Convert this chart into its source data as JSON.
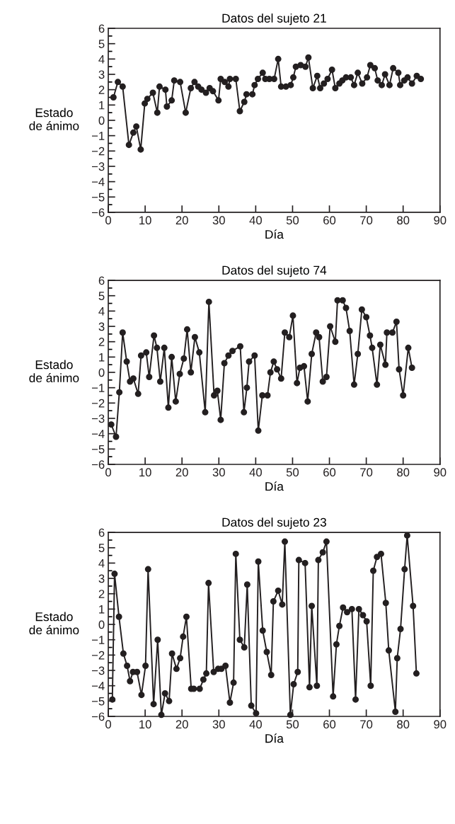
{
  "chart_data": [
    {
      "type": "line",
      "title": "Datos del sujeto 21",
      "xlabel": "Día",
      "ylabel": "Estado\nde ánimo",
      "marker": "circle",
      "line_style": "solid",
      "xlim": [
        0,
        90
      ],
      "xticks": [
        0,
        10,
        20,
        30,
        40,
        50,
        60,
        70,
        80,
        90
      ],
      "ylim": [
        -6,
        6
      ],
      "yticks": [
        {
          "value": -6,
          "label": "−6"
        },
        {
          "value": -5.5,
          "label": null
        },
        {
          "value": -5,
          "label": "−5"
        },
        {
          "value": -4.5,
          "label": null
        },
        {
          "value": -4,
          "label": "−4"
        },
        {
          "value": -3.5,
          "label": null
        },
        {
          "value": -3,
          "label": "−3"
        },
        {
          "value": -2.5,
          "label": null
        },
        {
          "value": -2,
          "label": "−2"
        },
        {
          "value": -1.5,
          "label": null
        },
        {
          "value": -1,
          "label": "−1"
        },
        {
          "value": -0.5,
          "label": null
        },
        0,
        {
          "value": 0.5,
          "label": null
        },
        1,
        {
          "value": 1.5,
          "label": null
        },
        2,
        {
          "value": 2.5,
          "label": null
        },
        3,
        {
          "value": 3.5,
          "label": null
        },
        4,
        {
          "value": 4.5,
          "label": null
        },
        5,
        {
          "value": 5.5,
          "label": null
        },
        6
      ],
      "series": [
        {
          "color": "#231f20",
          "x": [
            1.4,
            2.6,
            3.9,
            5.6,
            6.8,
            7.6,
            8.8,
            9.9,
            10.6,
            12.1,
            13.3,
            13.9,
            15.5,
            15.9,
            17.2,
            17.9,
            19.5,
            21.0,
            22.4,
            23.4,
            24.4,
            25.3,
            26.5,
            27.5,
            28.4,
            29.9,
            30.5,
            31.6,
            32.6,
            33.0,
            34.6,
            35.7,
            36.9,
            37.5,
            39.1,
            39.7,
            40.6,
            41.9,
            42.6,
            43.7,
            45.0,
            46.1,
            46.9,
            48.2,
            49.5,
            50.2,
            50.9,
            52.2,
            53.5,
            54.3,
            55.5,
            56.7,
            57.5,
            58.5,
            59.5,
            60.7,
            61.6,
            62.7,
            63.5,
            64.5,
            65.8,
            66.7,
            67.7,
            68.9,
            70.2,
            71.1,
            72.3,
            73.1,
            74.2,
            75.1,
            76.3,
            77.3,
            78.7,
            79.2,
            80.3,
            81.2,
            82.4,
            83.7,
            84.8
          ],
          "values": [
            1.5,
            2.5,
            2.2,
            -1.6,
            -0.8,
            -0.4,
            -1.9,
            1.1,
            1.4,
            1.8,
            0.5,
            2.2,
            2.0,
            0.9,
            1.3,
            2.6,
            2.5,
            0.5,
            2.1,
            2.5,
            2.2,
            2.0,
            1.8,
            2.1,
            1.9,
            1.3,
            2.7,
            2.5,
            2.2,
            2.7,
            2.7,
            0.6,
            1.2,
            1.7,
            1.7,
            2.3,
            2.7,
            3.1,
            2.7,
            2.7,
            2.7,
            4.0,
            2.2,
            2.2,
            2.3,
            2.8,
            3.5,
            3.6,
            3.5,
            4.1,
            2.1,
            2.9,
            2.1,
            2.4,
            2.7,
            3.3,
            2.1,
            2.4,
            2.6,
            2.8,
            2.8,
            2.3,
            3.1,
            2.4,
            2.8,
            3.6,
            3.4,
            2.6,
            2.3,
            3.0,
            2.3,
            3.4,
            3.1,
            2.3,
            2.6,
            2.8,
            2.4,
            2.9,
            2.7
          ]
        }
      ]
    },
    {
      "type": "line",
      "title": "Datos del sujeto 74",
      "xlabel": "Día",
      "ylabel": "Estado\nde ánimo",
      "marker": "circle",
      "line_style": "solid",
      "xlim": [
        0,
        90
      ],
      "xticks": [
        0,
        10,
        20,
        30,
        40,
        50,
        60,
        70,
        80,
        90
      ],
      "ylim": [
        -6,
        6
      ],
      "yticks": [
        {
          "value": -6,
          "label": "−6"
        },
        {
          "value": -5.5,
          "label": null
        },
        {
          "value": -5,
          "label": "−5"
        },
        {
          "value": -4.5,
          "label": null
        },
        {
          "value": -4,
          "label": "−4"
        },
        {
          "value": -3.5,
          "label": null
        },
        {
          "value": -3,
          "label": "−3"
        },
        {
          "value": -2.5,
          "label": null
        },
        {
          "value": -2,
          "label": "−2"
        },
        {
          "value": -1.5,
          "label": null
        },
        {
          "value": -1,
          "label": "−1"
        },
        {
          "value": -0.5,
          "label": null
        },
        0,
        {
          "value": 0.5,
          "label": null
        },
        1,
        {
          "value": 1.5,
          "label": null
        },
        2,
        {
          "value": 2.5,
          "label": null
        },
        3,
        {
          "value": 3.5,
          "label": null
        },
        4,
        {
          "value": 4.5,
          "label": null
        },
        5,
        {
          "value": 5.5,
          "label": null
        },
        6
      ],
      "series": [
        {
          "color": "#231f20",
          "x": [
            0.8,
            2.1,
            3.0,
            3.9,
            5.0,
            5.9,
            6.8,
            8.1,
            8.9,
            10.3,
            11.1,
            12.4,
            13.2,
            14.1,
            15.2,
            16.3,
            17.2,
            18.3,
            19.4,
            20.5,
            21.4,
            22.4,
            23.5,
            24.7,
            26.3,
            27.3,
            28.7,
            29.6,
            30.5,
            31.5,
            32.6,
            33.7,
            35.8,
            36.8,
            37.6,
            38.2,
            39.7,
            40.7,
            41.8,
            43.2,
            44.0,
            44.9,
            45.8,
            46.9,
            47.9,
            49.1,
            50.1,
            51.2,
            52.0,
            53.1,
            54.1,
            55.2,
            56.4,
            57.2,
            58.2,
            59.2,
            60.2,
            61.6,
            62.2,
            63.6,
            64.5,
            65.5,
            66.7,
            67.7,
            68.8,
            70.0,
            71.0,
            71.6,
            72.9,
            73.8,
            75.2,
            75.6,
            77.1,
            78.2,
            78.9,
            80.0,
            81.4,
            82.4
          ],
          "values": [
            -3.4,
            -4.2,
            -1.3,
            2.6,
            0.7,
            -0.6,
            -0.4,
            -1.4,
            1.1,
            1.3,
            -0.3,
            2.4,
            1.6,
            -0.6,
            1.6,
            -2.3,
            1.0,
            -1.9,
            -0.1,
            0.9,
            2.8,
            0.0,
            2.3,
            1.3,
            -2.6,
            4.6,
            -1.5,
            -1.2,
            -3.1,
            0.6,
            1.1,
            1.4,
            1.7,
            -2.6,
            -1.0,
            0.7,
            1.1,
            -3.8,
            -1.5,
            -1.5,
            0.0,
            0.7,
            0.2,
            -0.4,
            2.6,
            2.3,
            3.7,
            -0.7,
            0.3,
            0.4,
            -1.9,
            1.2,
            2.6,
            2.3,
            -0.6,
            -0.3,
            3.0,
            2.0,
            4.7,
            4.7,
            4.2,
            2.7,
            -0.8,
            1.2,
            4.1,
            3.6,
            2.4,
            1.6,
            -0.8,
            1.8,
            0.5,
            2.6,
            2.6,
            3.3,
            0.2,
            -1.5,
            1.6,
            0.3
          ]
        }
      ]
    },
    {
      "type": "line",
      "title": "Datos del sujeto 23",
      "xlabel": "Día",
      "ylabel": "Estado\nde ánimo",
      "marker": "circle",
      "line_style": "solid",
      "xlim": [
        0,
        90
      ],
      "xticks": [
        0,
        10,
        20,
        30,
        40,
        50,
        60,
        70,
        80,
        90
      ],
      "ylim": [
        -6,
        6
      ],
      "yticks": [
        {
          "value": -6,
          "label": "−6"
        },
        {
          "value": -5.5,
          "label": null
        },
        {
          "value": -5,
          "label": "−5"
        },
        {
          "value": -4.5,
          "label": null
        },
        {
          "value": -4,
          "label": "−4"
        },
        {
          "value": -3.5,
          "label": null
        },
        {
          "value": -3,
          "label": "−3"
        },
        {
          "value": -2.5,
          "label": null
        },
        {
          "value": -2,
          "label": "−2"
        },
        {
          "value": -1.5,
          "label": null
        },
        {
          "value": -1,
          "label": "−1"
        },
        {
          "value": -0.5,
          "label": null
        },
        0,
        {
          "value": 0.5,
          "label": null
        },
        1,
        {
          "value": 1.5,
          "label": null
        },
        2,
        {
          "value": 2.5,
          "label": null
        },
        3,
        {
          "value": 3.5,
          "label": null
        },
        4,
        {
          "value": 4.5,
          "label": null
        },
        5,
        {
          "value": 5.5,
          "label": null
        },
        6
      ],
      "series": [
        {
          "color": "#231f20",
          "x": [
            1.1,
            1.7,
            2.9,
            4.1,
            5.1,
            5.9,
            6.7,
            7.8,
            9.0,
            10.1,
            10.8,
            12.3,
            13.4,
            14.4,
            15.4,
            16.5,
            17.3,
            18.5,
            19.5,
            20.3,
            21.2,
            22.5,
            23.2,
            24.8,
            25.8,
            26.6,
            27.2,
            28.6,
            29.8,
            30.7,
            31.8,
            33.0,
            34.0,
            34.6,
            35.7,
            36.9,
            37.7,
            38.8,
            40.1,
            40.7,
            41.9,
            43.0,
            44.2,
            44.8,
            46.1,
            47.2,
            47.9,
            49.4,
            50.3,
            51.4,
            51.7,
            53.4,
            54.6,
            55.2,
            56.6,
            57.0,
            58.2,
            59.2,
            61.0,
            61.9,
            62.7,
            63.7,
            64.8,
            66.1,
            67.1,
            68.0,
            69.1,
            70.1,
            71.2,
            71.9,
            72.9,
            74.0,
            75.3,
            76.1,
            77.9,
            78.4,
            79.3,
            80.4,
            81.1,
            82.7,
            83.6
          ],
          "values": [
            -4.9,
            3.3,
            0.5,
            -1.9,
            -2.7,
            -3.7,
            -3.1,
            -3.1,
            -4.6,
            -2.7,
            3.6,
            -5.2,
            -1.0,
            -5.9,
            -4.5,
            -5.0,
            -1.9,
            -2.9,
            -2.2,
            -0.8,
            0.5,
            -4.2,
            -4.2,
            -4.2,
            -3.6,
            -3.2,
            2.7,
            -3.1,
            -2.9,
            -2.9,
            -2.7,
            -5.1,
            -3.8,
            4.6,
            -1.0,
            -1.5,
            2.6,
            -5.3,
            -5.8,
            4.1,
            -0.4,
            -1.8,
            -3.3,
            1.5,
            2.2,
            1.3,
            5.4,
            -5.9,
            -3.9,
            -3.1,
            4.2,
            4.0,
            -4.1,
            1.2,
            -4.0,
            4.2,
            4.7,
            5.4,
            -4.7,
            -1.3,
            -0.1,
            1.1,
            0.8,
            1.0,
            -4.9,
            1.0,
            0.6,
            0.2,
            -4.0,
            3.5,
            4.4,
            4.6,
            1.4,
            -1.7,
            -5.7,
            -2.2,
            -0.3,
            3.6,
            5.8,
            1.2,
            -3.2
          ]
        }
      ]
    }
  ]
}
